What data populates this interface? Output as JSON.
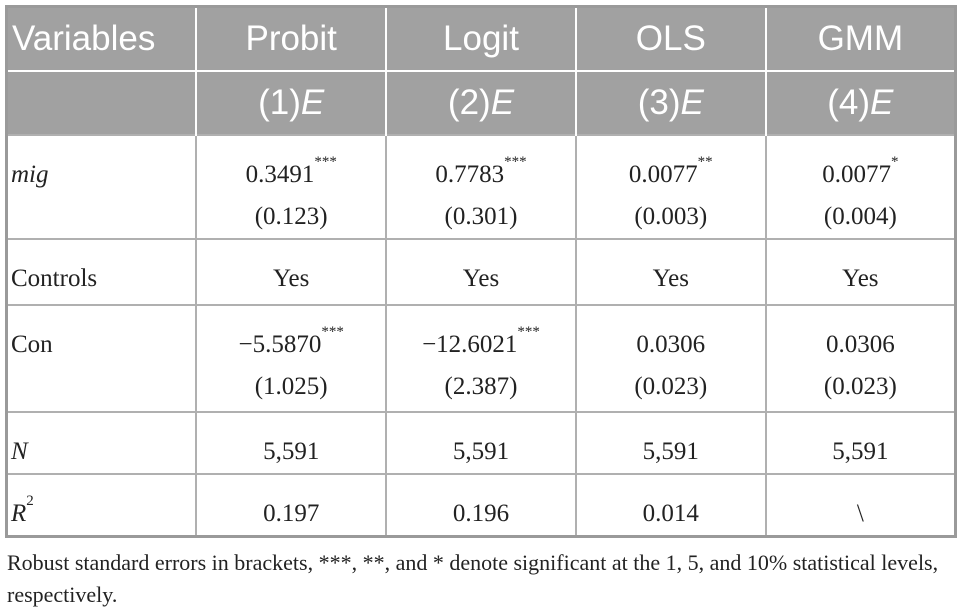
{
  "table": {
    "columns": [
      "Variables",
      "Probit",
      "Logit",
      "OLS",
      "GMM"
    ],
    "models": [
      {
        "number": "(1)",
        "dep": "E"
      },
      {
        "number": "(2)",
        "dep": "E"
      },
      {
        "number": "(3)",
        "dep": "E"
      },
      {
        "number": "(4)",
        "dep": "E"
      }
    ],
    "rows": [
      {
        "label": "mig",
        "italic": true,
        "cells": [
          {
            "coef": "0.3491",
            "stars": "***",
            "se": "(0.123)"
          },
          {
            "coef": "0.7783",
            "stars": "***",
            "se": "(0.301)"
          },
          {
            "coef": "0.0077",
            "stars": "**",
            "se": "(0.003)"
          },
          {
            "coef": "0.0077",
            "stars": "*",
            "se": "(0.004)"
          }
        ]
      },
      {
        "label": "Controls",
        "italic": false,
        "cells": [
          {
            "coef": "Yes"
          },
          {
            "coef": "Yes"
          },
          {
            "coef": "Yes"
          },
          {
            "coef": "Yes"
          }
        ]
      },
      {
        "label": "Con",
        "italic": false,
        "cells": [
          {
            "coef": "−5.5870",
            "stars": "***",
            "se": "(1.025)"
          },
          {
            "coef": "−12.6021",
            "stars": "***",
            "se": "(2.387)"
          },
          {
            "coef": "0.0306",
            "se": "(0.023)"
          },
          {
            "coef": "0.0306",
            "se": "(0.023)"
          }
        ]
      },
      {
        "label": "N",
        "italic": true,
        "cells": [
          {
            "coef": "5,591"
          },
          {
            "coef": "5,591"
          },
          {
            "coef": "5,591"
          },
          {
            "coef": "5,591"
          }
        ]
      },
      {
        "label": "R",
        "label_sup": "2",
        "italic": true,
        "cells": [
          {
            "coef": "0.197"
          },
          {
            "coef": "0.196"
          },
          {
            "coef": "0.014"
          },
          {
            "coef": "\\"
          }
        ]
      }
    ],
    "note": "Robust standard errors in brackets, ***, **, and * denote significant at the 1, 5, and 10% statistical levels, respectively."
  }
}
